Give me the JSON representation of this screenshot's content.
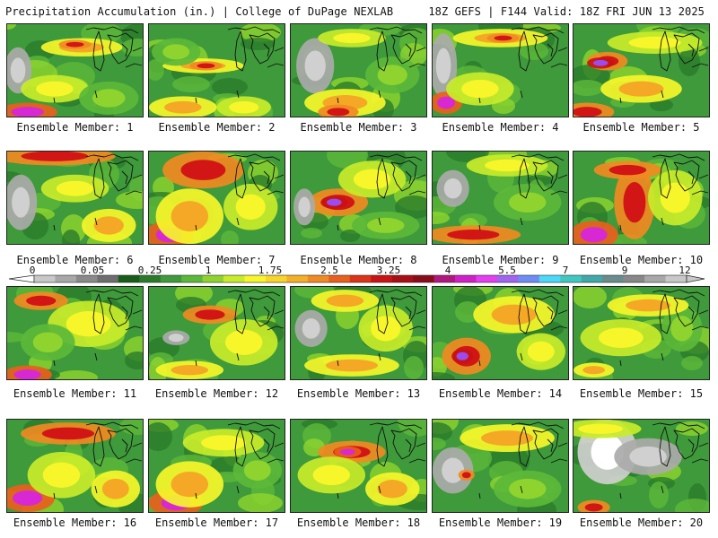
{
  "header": {
    "title": "Precipitation Accumulation (in.) | College of DuPage NEXLAB",
    "run_info": "18Z GEFS | F144 Valid: 18Z FRI JUN 13 2025"
  },
  "legend": {
    "tick_labels": [
      "0",
      "0.05",
      "0.25",
      "1",
      "1.75",
      "2.5",
      "3.25",
      "4",
      "5.5",
      "7",
      "9",
      "12"
    ],
    "colors": [
      "#c8c8c8",
      "#a8a8a8",
      "#8a8a8a",
      "#6e6e6e",
      "#185d1a",
      "#2b7a2b",
      "#3e9a3a",
      "#5cb83a",
      "#8fd42e",
      "#c8ec2a",
      "#f6f62a",
      "#f8d52a",
      "#f5b027",
      "#f08a22",
      "#e8601c",
      "#dc3418",
      "#c81414",
      "#a80f14",
      "#8a0c1a",
      "#b01880",
      "#d020c8",
      "#e43ef0",
      "#a064f0",
      "#6e8cf6",
      "#4cd8f8",
      "#40c8c0",
      "#40a8a8",
      "#6a8c8c",
      "#888888",
      "#a8a8a8",
      "#c8c8c8"
    ]
  },
  "members": [
    {
      "label": "Ensemble Member: 1",
      "feats": [
        [
          0.08,
          0.5,
          0.1,
          0.25,
          "gray"
        ],
        [
          0.55,
          0.25,
          0.3,
          0.1,
          "orange"
        ],
        [
          0.5,
          0.22,
          0.12,
          0.05,
          "red"
        ],
        [
          0.15,
          0.95,
          0.22,
          0.1,
          "magenta"
        ],
        [
          0.35,
          0.7,
          0.25,
          0.15,
          "yellow"
        ],
        [
          0.75,
          0.8,
          0.22,
          0.18,
          "lgreen"
        ]
      ]
    },
    {
      "label": "Ensemble Member: 2",
      "feats": [
        [
          0.4,
          0.45,
          0.3,
          0.08,
          "orange"
        ],
        [
          0.42,
          0.45,
          0.12,
          0.05,
          "red"
        ],
        [
          0.25,
          0.9,
          0.25,
          0.12,
          "orange"
        ],
        [
          0.7,
          0.9,
          0.2,
          0.12,
          "yellow"
        ],
        [
          0.2,
          0.3,
          0.18,
          0.15,
          "lgreen"
        ]
      ]
    },
    {
      "label": "Ensemble Member: 3",
      "feats": [
        [
          0.18,
          0.45,
          0.14,
          0.3,
          "gray"
        ],
        [
          0.4,
          0.85,
          0.3,
          0.15,
          "orange"
        ],
        [
          0.35,
          0.95,
          0.15,
          0.08,
          "red"
        ],
        [
          0.45,
          0.15,
          0.25,
          0.1,
          "yellow"
        ],
        [
          0.75,
          0.55,
          0.2,
          0.2,
          "lgreen"
        ]
      ]
    },
    {
      "label": "Ensemble Member: 4",
      "feats": [
        [
          0.08,
          0.45,
          0.1,
          0.35,
          "gray"
        ],
        [
          0.5,
          0.15,
          0.35,
          0.1,
          "orange"
        ],
        [
          0.52,
          0.15,
          0.12,
          0.05,
          "red"
        ],
        [
          0.1,
          0.85,
          0.12,
          0.12,
          "magenta"
        ],
        [
          0.35,
          0.7,
          0.25,
          0.18,
          "yellow"
        ]
      ]
    },
    {
      "label": "Ensemble Member: 5",
      "feats": [
        [
          0.25,
          0.4,
          0.15,
          0.1,
          "red"
        ],
        [
          0.2,
          0.42,
          0.1,
          0.06,
          "purple"
        ],
        [
          0.6,
          0.2,
          0.35,
          0.12,
          "yellow"
        ],
        [
          0.1,
          0.95,
          0.2,
          0.1,
          "red"
        ],
        [
          0.5,
          0.7,
          0.3,
          0.15,
          "orange"
        ]
      ]
    },
    {
      "label": "Ensemble Member: 6",
      "feats": [
        [
          0.35,
          0.05,
          0.45,
          0.1,
          "red"
        ],
        [
          0.1,
          0.55,
          0.12,
          0.3,
          "gray"
        ],
        [
          0.5,
          0.4,
          0.25,
          0.15,
          "yellow"
        ],
        [
          0.75,
          0.8,
          0.2,
          0.18,
          "orange"
        ]
      ]
    },
    {
      "label": "Ensemble Member: 7",
      "feats": [
        [
          0.15,
          0.9,
          0.18,
          0.15,
          "magenta"
        ],
        [
          0.3,
          0.7,
          0.25,
          0.3,
          "orange"
        ],
        [
          0.4,
          0.2,
          0.3,
          0.2,
          "red"
        ],
        [
          0.75,
          0.6,
          0.2,
          0.25,
          "yellow"
        ]
      ]
    },
    {
      "label": "Ensemble Member: 8",
      "feats": [
        [
          0.35,
          0.55,
          0.22,
          0.15,
          "red"
        ],
        [
          0.32,
          0.55,
          0.1,
          0.07,
          "purple"
        ],
        [
          0.6,
          0.3,
          0.25,
          0.2,
          "yellow"
        ],
        [
          0.1,
          0.6,
          0.08,
          0.2,
          "gray"
        ],
        [
          0.7,
          0.8,
          0.25,
          0.15,
          "lgreen"
        ]
      ]
    },
    {
      "label": "Ensemble Member: 9",
      "feats": [
        [
          0.3,
          0.9,
          0.35,
          0.1,
          "red"
        ],
        [
          0.55,
          0.15,
          0.3,
          0.12,
          "yellow"
        ],
        [
          0.15,
          0.4,
          0.12,
          0.2,
          "gray"
        ],
        [
          0.7,
          0.55,
          0.25,
          0.2,
          "lgreen"
        ]
      ]
    },
    {
      "label": "Ensemble Member: 10",
      "feats": [
        [
          0.45,
          0.55,
          0.15,
          0.4,
          "red"
        ],
        [
          0.4,
          0.2,
          0.25,
          0.1,
          "red"
        ],
        [
          0.15,
          0.9,
          0.18,
          0.15,
          "magenta"
        ],
        [
          0.75,
          0.5,
          0.2,
          0.3,
          "yellow"
        ]
      ]
    },
    {
      "label": "Ensemble Member: 11",
      "feats": [
        [
          0.25,
          0.15,
          0.2,
          0.1,
          "red"
        ],
        [
          0.15,
          0.95,
          0.18,
          0.1,
          "magenta"
        ],
        [
          0.6,
          0.4,
          0.3,
          0.25,
          "yellow"
        ],
        [
          0.3,
          0.6,
          0.2,
          0.2,
          "lgreen"
        ]
      ]
    },
    {
      "label": "Ensemble Member: 12",
      "feats": [
        [
          0.45,
          0.3,
          0.2,
          0.1,
          "red"
        ],
        [
          0.3,
          0.9,
          0.25,
          0.1,
          "orange"
        ],
        [
          0.2,
          0.55,
          0.1,
          0.08,
          "gray"
        ],
        [
          0.7,
          0.6,
          0.25,
          0.25,
          "yellow"
        ]
      ]
    },
    {
      "label": "Ensemble Member: 13",
      "feats": [
        [
          0.15,
          0.45,
          0.12,
          0.2,
          "gray"
        ],
        [
          0.4,
          0.15,
          0.25,
          0.12,
          "orange"
        ],
        [
          0.45,
          0.85,
          0.35,
          0.12,
          "orange"
        ],
        [
          0.7,
          0.45,
          0.2,
          0.25,
          "yellow"
        ]
      ]
    },
    {
      "label": "Ensemble Member: 14",
      "feats": [
        [
          0.25,
          0.75,
          0.18,
          0.2,
          "red"
        ],
        [
          0.22,
          0.75,
          0.08,
          0.08,
          "purple"
        ],
        [
          0.6,
          0.3,
          0.3,
          0.2,
          "orange"
        ],
        [
          0.8,
          0.7,
          0.18,
          0.2,
          "yellow"
        ]
      ]
    },
    {
      "label": "Ensemble Member: 15",
      "feats": [
        [
          0.35,
          0.55,
          0.3,
          0.2,
          "yellow"
        ],
        [
          0.15,
          0.9,
          0.15,
          0.08,
          "orange"
        ],
        [
          0.8,
          0.45,
          0.15,
          0.25,
          "lgreen"
        ],
        [
          0.55,
          0.2,
          0.3,
          0.12,
          "orange"
        ]
      ]
    },
    {
      "label": "Ensemble Member: 16",
      "feats": [
        [
          0.45,
          0.15,
          0.35,
          0.12,
          "red"
        ],
        [
          0.15,
          0.85,
          0.2,
          0.15,
          "magenta"
        ],
        [
          0.4,
          0.6,
          0.25,
          0.25,
          "yellow"
        ],
        [
          0.8,
          0.75,
          0.18,
          0.2,
          "orange"
        ]
      ]
    },
    {
      "label": "Ensemble Member: 17",
      "feats": [
        [
          0.2,
          0.9,
          0.2,
          0.15,
          "magenta"
        ],
        [
          0.3,
          0.7,
          0.25,
          0.25,
          "orange"
        ],
        [
          0.55,
          0.25,
          0.3,
          0.15,
          "yellow"
        ],
        [
          0.8,
          0.55,
          0.18,
          0.2,
          "lgreen"
        ]
      ]
    },
    {
      "label": "Ensemble Member: 18",
      "feats": [
        [
          0.45,
          0.35,
          0.25,
          0.12,
          "red"
        ],
        [
          0.42,
          0.35,
          0.1,
          0.06,
          "magenta"
        ],
        [
          0.3,
          0.6,
          0.25,
          0.2,
          "yellow"
        ],
        [
          0.75,
          0.75,
          0.2,
          0.18,
          "orange"
        ]
      ]
    },
    {
      "label": "Ensemble Member: 19",
      "feats": [
        [
          0.15,
          0.55,
          0.15,
          0.25,
          "gray"
        ],
        [
          0.25,
          0.6,
          0.06,
          0.06,
          "red"
        ],
        [
          0.55,
          0.2,
          0.35,
          0.15,
          "orange"
        ],
        [
          0.7,
          0.75,
          0.25,
          0.2,
          "lgreen"
        ]
      ]
    },
    {
      "label": "Ensemble Member: 20",
      "feats": [
        [
          0.25,
          0.35,
          0.22,
          0.35,
          "white"
        ],
        [
          0.55,
          0.4,
          0.25,
          0.2,
          "gray"
        ],
        [
          0.2,
          0.1,
          0.3,
          0.1,
          "yellow"
        ],
        [
          0.15,
          0.95,
          0.12,
          0.08,
          "red"
        ]
      ]
    }
  ]
}
